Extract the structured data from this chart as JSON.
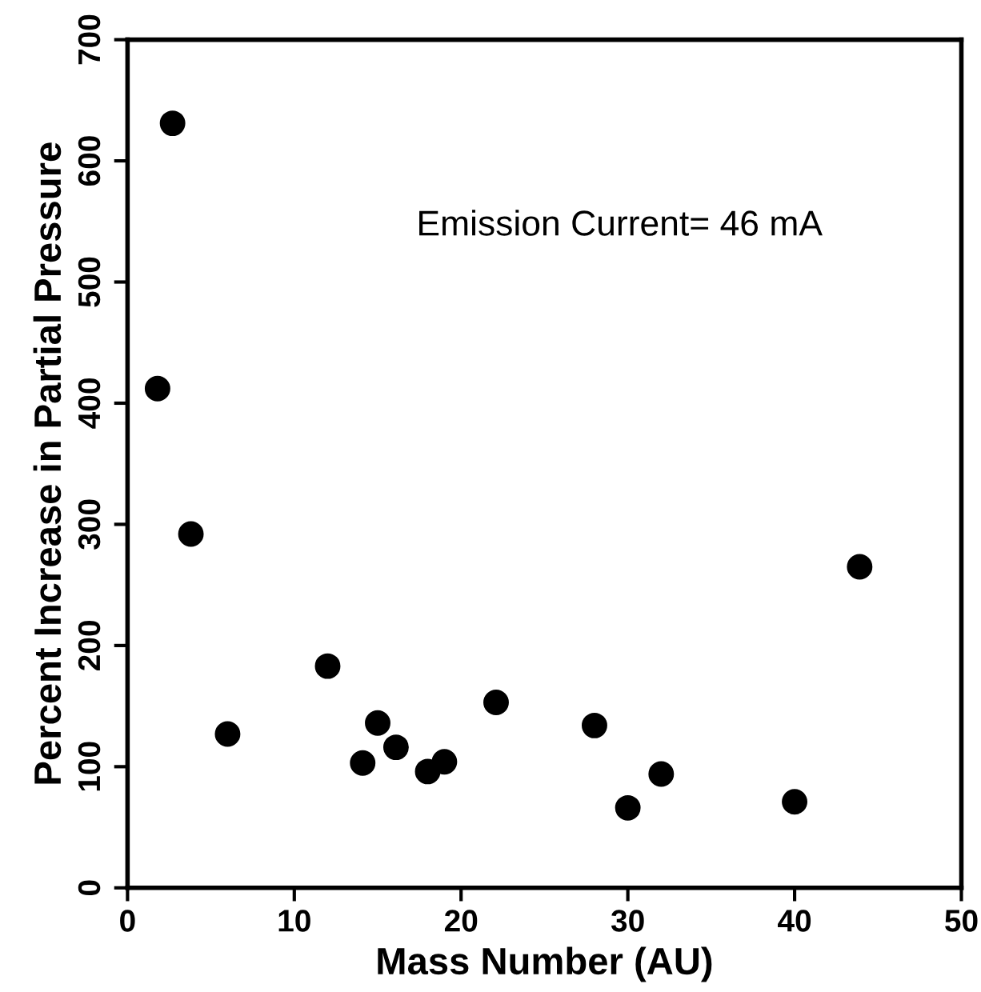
{
  "chart_data": {
    "type": "scatter",
    "xlabel": "Mass Number (AU)",
    "ylabel": "Percent Increase in Partial Pressure",
    "annotations": [
      "Emission Current= 46 mA"
    ],
    "series": [
      {
        "color": "#000000",
        "x": [
          1.8,
          2.7,
          3.8,
          6,
          12,
          14.1,
          15,
          16.1,
          18,
          19,
          22.1,
          28,
          30,
          32,
          40,
          43.9
        ],
        "values": [
          412,
          631,
          292,
          127,
          183,
          103,
          136,
          116,
          96,
          104,
          153,
          134,
          66,
          94,
          71,
          265
        ]
      }
    ],
    "xlim": [
      0,
      50
    ],
    "xticks": [
      0,
      10,
      20,
      30,
      40,
      50
    ],
    "ylim": [
      0,
      700
    ],
    "yticks": [
      0,
      100,
      200,
      300,
      400,
      500,
      600,
      700
    ],
    "marker": "circle",
    "grid": false
  }
}
